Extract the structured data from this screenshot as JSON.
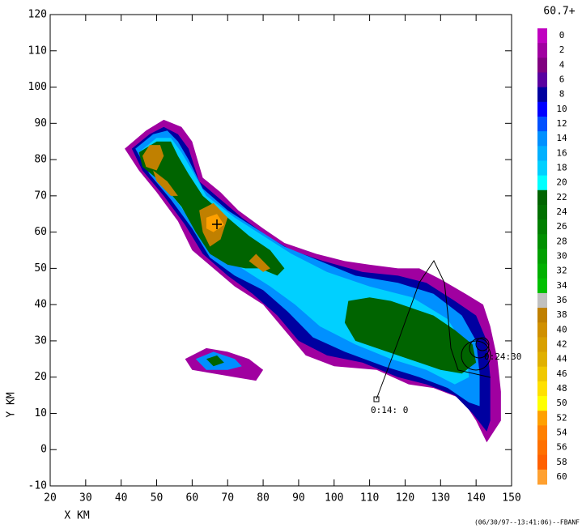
{
  "chart_data": {
    "type": "radar-field",
    "xlabel": "X KM",
    "ylabel": "Y KM",
    "xlim": [
      20,
      150
    ],
    "xticks": [
      20,
      30,
      40,
      50,
      60,
      70,
      80,
      90,
      100,
      110,
      120,
      130,
      140,
      150
    ],
    "ylim": [
      -10,
      120
    ],
    "yticks": [
      -10,
      0,
      10,
      20,
      30,
      40,
      50,
      60,
      70,
      80,
      90,
      100,
      110,
      120
    ],
    "footer": "(06/30/97--13:41:06)--FBANF",
    "annotations": [
      "0:14: 0",
      "0:24:30"
    ],
    "colorbar": {
      "max_label": "60.7+",
      "levels": [
        0,
        2,
        4,
        6,
        8,
        10,
        12,
        14,
        16,
        18,
        20,
        22,
        24,
        26,
        28,
        30,
        32,
        34,
        36,
        38,
        40,
        42,
        44,
        46,
        48,
        50,
        52,
        54,
        56,
        58,
        60
      ],
      "colors": [
        "#c000c0",
        "#a000a0",
        "#800080",
        "#5a00a0",
        "#0000a0",
        "#0000ff",
        "#0050ff",
        "#0090ff",
        "#00b0ff",
        "#00d0ff",
        "#00ffff",
        "#006400",
        "#007000",
        "#008000",
        "#009000",
        "#00a000",
        "#00b000",
        "#00c000",
        "#c0c0c0",
        "#c08000",
        "#d09000",
        "#d8a000",
        "#e0b000",
        "#f0c800",
        "#ffe000",
        "#ffff00",
        "#ffa000",
        "#ff8000",
        "#ff7000",
        "#ff6000",
        "#ffa030"
      ]
    },
    "contours": [
      {
        "level": 2,
        "points": [
          [
            41,
            83
          ],
          [
            47,
            88
          ],
          [
            52,
            91
          ],
          [
            57,
            89
          ],
          [
            60,
            85
          ],
          [
            63,
            75
          ],
          [
            68,
            71
          ],
          [
            73,
            66
          ],
          [
            80,
            61
          ],
          [
            86,
            57
          ],
          [
            95,
            54
          ],
          [
            103,
            52
          ],
          [
            110,
            51
          ],
          [
            118,
            50
          ],
          [
            124,
            50
          ],
          [
            130,
            47
          ],
          [
            137,
            43
          ],
          [
            142,
            40
          ],
          [
            144,
            34
          ],
          [
            146,
            25
          ],
          [
            147,
            16
          ],
          [
            147,
            8
          ],
          [
            143,
            2
          ],
          [
            140,
            8
          ],
          [
            136,
            14
          ],
          [
            128,
            17
          ],
          [
            121,
            18
          ],
          [
            112,
            22
          ],
          [
            100,
            23
          ],
          [
            92,
            26
          ],
          [
            86,
            33
          ],
          [
            80,
            40
          ],
          [
            72,
            45
          ],
          [
            66,
            50
          ],
          [
            60,
            55
          ],
          [
            56,
            63
          ],
          [
            50,
            71
          ],
          [
            45,
            77
          ]
        ]
      },
      {
        "level": 8,
        "points": [
          [
            43,
            83
          ],
          [
            48,
            87
          ],
          [
            52,
            89
          ],
          [
            56,
            87
          ],
          [
            59,
            83
          ],
          [
            62,
            74
          ],
          [
            68,
            69
          ],
          [
            74,
            64
          ],
          [
            81,
            59
          ],
          [
            88,
            55
          ],
          [
            97,
            52
          ],
          [
            108,
            49
          ],
          [
            118,
            48
          ],
          [
            126,
            46
          ],
          [
            134,
            41
          ],
          [
            140,
            37
          ],
          [
            143,
            30
          ],
          [
            144,
            20
          ],
          [
            144,
            8
          ],
          [
            143,
            5
          ],
          [
            139,
            10
          ],
          [
            134,
            15
          ],
          [
            126,
            18
          ],
          [
            118,
            20
          ],
          [
            108,
            24
          ],
          [
            98,
            26
          ],
          [
            90,
            30
          ],
          [
            84,
            37
          ],
          [
            77,
            43
          ],
          [
            70,
            48
          ],
          [
            63,
            54
          ],
          [
            58,
            62
          ],
          [
            52,
            70
          ],
          [
            46,
            77
          ]
        ]
      },
      {
        "level": 14,
        "points": [
          [
            44,
            83
          ],
          [
            49,
            87
          ],
          [
            53,
            88
          ],
          [
            56,
            85
          ],
          [
            59,
            80
          ],
          [
            63,
            72
          ],
          [
            70,
            66
          ],
          [
            78,
            61
          ],
          [
            86,
            56
          ],
          [
            96,
            52
          ],
          [
            106,
            48
          ],
          [
            118,
            46
          ],
          [
            128,
            43
          ],
          [
            136,
            37
          ],
          [
            140,
            30
          ],
          [
            141,
            21
          ],
          [
            141,
            12
          ],
          [
            138,
            13
          ],
          [
            132,
            17
          ],
          [
            124,
            20
          ],
          [
            114,
            23
          ],
          [
            103,
            27
          ],
          [
            94,
            31
          ],
          [
            87,
            38
          ],
          [
            80,
            44
          ],
          [
            72,
            48
          ],
          [
            65,
            53
          ],
          [
            60,
            61
          ],
          [
            54,
            69
          ],
          [
            48,
            76
          ]
        ]
      },
      {
        "level": 18,
        "points": [
          [
            45,
            82
          ],
          [
            50,
            86
          ],
          [
            54,
            86
          ],
          [
            57,
            82
          ],
          [
            60,
            77
          ],
          [
            64,
            70
          ],
          [
            72,
            64
          ],
          [
            80,
            59
          ],
          [
            88,
            54
          ],
          [
            98,
            49
          ],
          [
            110,
            45
          ],
          [
            122,
            42
          ],
          [
            132,
            36
          ],
          [
            137,
            28
          ],
          [
            138,
            20
          ],
          [
            134,
            18
          ],
          [
            126,
            22
          ],
          [
            116,
            25
          ],
          [
            106,
            29
          ],
          [
            96,
            34
          ],
          [
            89,
            40
          ],
          [
            82,
            45
          ],
          [
            74,
            50
          ],
          [
            67,
            54
          ],
          [
            62,
            60
          ],
          [
            56,
            68
          ],
          [
            50,
            75
          ]
        ]
      },
      {
        "level": 22,
        "points": [
          [
            45,
            82
          ],
          [
            50,
            85
          ],
          [
            54,
            85
          ],
          [
            56,
            81
          ],
          [
            59,
            76
          ],
          [
            63,
            70
          ],
          [
            70,
            64
          ],
          [
            76,
            59
          ],
          [
            82,
            55
          ],
          [
            86,
            50
          ],
          [
            84,
            48
          ],
          [
            79,
            50
          ],
          [
            75,
            50
          ],
          [
            70,
            51
          ],
          [
            65,
            54
          ],
          [
            61,
            60
          ],
          [
            57,
            67
          ],
          [
            51,
            74
          ],
          [
            46,
            78
          ]
        ]
      },
      {
        "level": 22,
        "points": [
          [
            104,
            41
          ],
          [
            110,
            42
          ],
          [
            116,
            41
          ],
          [
            122,
            39
          ],
          [
            128,
            37
          ],
          [
            134,
            33
          ],
          [
            139,
            29
          ],
          [
            140,
            24
          ],
          [
            136,
            21
          ],
          [
            130,
            22
          ],
          [
            124,
            24
          ],
          [
            118,
            26
          ],
          [
            112,
            28
          ],
          [
            106,
            30
          ],
          [
            103,
            35
          ]
        ]
      },
      {
        "level": 38,
        "points": [
          [
            46,
            81
          ],
          [
            48,
            84
          ],
          [
            51,
            84
          ],
          [
            52,
            81
          ],
          [
            50,
            77
          ],
          [
            47,
            78
          ]
        ]
      },
      {
        "level": 38,
        "points": [
          [
            49,
            77
          ],
          [
            53,
            74
          ],
          [
            56,
            70
          ],
          [
            54,
            70
          ],
          [
            50,
            74
          ]
        ]
      },
      {
        "level": 38,
        "points": [
          [
            62,
            66
          ],
          [
            66,
            68
          ],
          [
            70,
            64
          ],
          [
            68,
            58
          ],
          [
            65,
            56
          ],
          [
            63,
            60
          ]
        ]
      },
      {
        "level": 38,
        "points": [
          [
            78,
            54
          ],
          [
            82,
            50
          ],
          [
            80,
            49
          ],
          [
            76,
            52
          ]
        ]
      },
      {
        "level": 52,
        "points": [
          [
            64,
            64
          ],
          [
            67,
            65
          ],
          [
            69,
            62
          ],
          [
            66,
            60
          ],
          [
            64,
            61
          ]
        ]
      },
      {
        "level": 2,
        "points": [
          [
            58,
            25
          ],
          [
            64,
            28
          ],
          [
            70,
            27
          ],
          [
            76,
            25
          ],
          [
            80,
            22
          ],
          [
            78,
            19
          ],
          [
            72,
            20
          ],
          [
            66,
            21
          ],
          [
            60,
            22
          ]
        ]
      },
      {
        "level": 14,
        "points": [
          [
            61,
            25
          ],
          [
            66,
            27
          ],
          [
            72,
            25
          ],
          [
            74,
            23
          ],
          [
            70,
            22
          ],
          [
            64,
            22
          ]
        ]
      },
      {
        "level": 22,
        "points": [
          [
            64,
            25
          ],
          [
            67,
            26
          ],
          [
            69,
            24
          ],
          [
            66,
            23
          ]
        ]
      }
    ]
  }
}
